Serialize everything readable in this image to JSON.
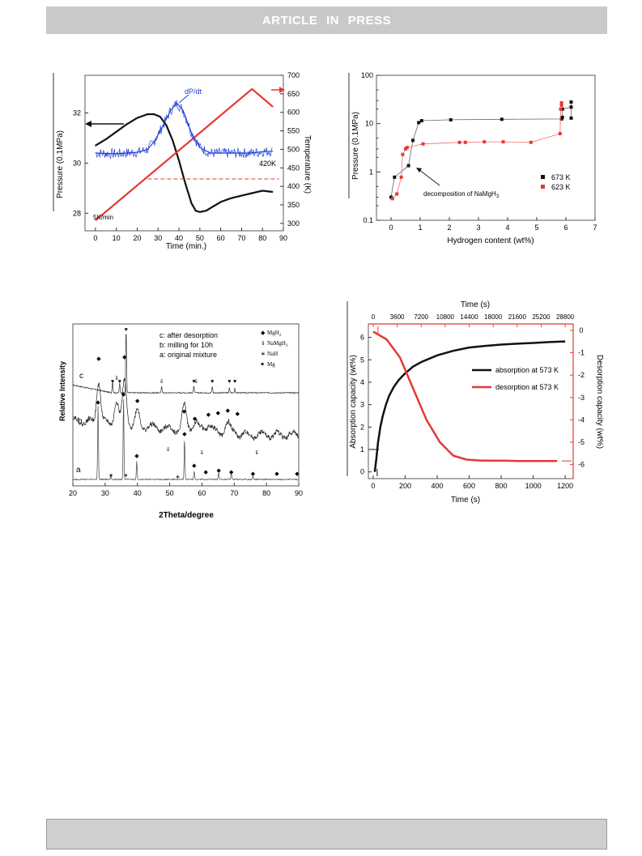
{
  "header": {
    "banner": "ARTICLE IN PRESS"
  },
  "charts": {
    "c1": {
      "ylabel_left": "Pressure (0.1MPa)",
      "ylabel_right": "Temperature (K)",
      "xlabel": "Time (min.)",
      "ann_dpdt": "dP/dt",
      "ann_420": "420K",
      "ann_rate": "5K/min"
    },
    "c2": {
      "ylabel": "Pressure (0.1MPa)",
      "xlabel": "Hydrogen content (wt%)",
      "ann": "decomposition of NaMgH",
      "ann_sub": "3",
      "legend": [
        "673 K",
        "623 K"
      ]
    },
    "c3": {
      "ylabel": "Relative Intensity",
      "xlabel": "2Theta/degree",
      "notes": [
        "c: after desorption",
        "b: milling for 10h",
        "a: original mixture"
      ],
      "legend": [
        "MgH",
        "NaMgH",
        "NaH",
        "Mg"
      ],
      "sub2": "2",
      "sub3": "3",
      "curve_labels": [
        "c",
        "b",
        "a"
      ]
    },
    "c4": {
      "xlabel_top": "Time (s)",
      "xlabel_bottom": "Time (s)",
      "ylabel_left": "Absorption capacity (wt%)",
      "ylabel_right": "Desorption capacity (wt%)",
      "legend": [
        "absorption at 573 K",
        "desorption at 573 K"
      ]
    }
  },
  "chart_data": [
    {
      "type": "line",
      "xlabel": "Time (min.)",
      "ylabel": "Pressure (0.1MPa)",
      "y2label": "Temperature (K)",
      "xlim": [
        -5,
        90
      ],
      "ylim": [
        27.3,
        33.5
      ],
      "y2lim": [
        280,
        700
      ],
      "xticks": [
        0,
        10,
        20,
        30,
        40,
        50,
        60,
        70,
        80,
        90
      ],
      "yticks": [
        28,
        30,
        32
      ],
      "y2ticks": [
        300,
        350,
        400,
        450,
        500,
        550,
        600,
        650,
        700
      ],
      "series": [
        {
          "axis": "left",
          "color": "#111111",
          "x": [
            0,
            5,
            10,
            15,
            20,
            25,
            28,
            31,
            34,
            37,
            40,
            43,
            46,
            48,
            50,
            53,
            56,
            60,
            65,
            70,
            75,
            80,
            85
          ],
          "y": [
            30.7,
            30.95,
            31.25,
            31.55,
            31.8,
            31.95,
            31.95,
            31.85,
            31.5,
            30.9,
            30.1,
            29.2,
            28.4,
            28.1,
            28.05,
            28.1,
            28.25,
            28.45,
            28.6,
            28.7,
            28.8,
            28.9,
            28.85
          ]
        },
        {
          "axis": "right",
          "color": "#e53935",
          "x": [
            0,
            75,
            85
          ],
          "y": [
            308,
            663,
            615
          ]
        },
        {
          "axis": "right",
          "color": "#e53935",
          "dashed": true,
          "x": [
            25,
            88
          ],
          "y": [
            420,
            420
          ]
        },
        {
          "axis": "right",
          "color": "#1f3fd8",
          "noisy": true,
          "x": [
            0,
            10,
            20,
            25,
            28,
            32,
            36,
            39,
            42,
            46,
            50,
            55,
            60,
            65,
            70,
            75,
            80,
            85
          ],
          "y": [
            490,
            488,
            492,
            500,
            520,
            560,
            605,
            625,
            605,
            545,
            505,
            490,
            490,
            490,
            490,
            490,
            494,
            495
          ]
        }
      ]
    },
    {
      "type": "scatter",
      "xlabel": "Hydrogen content (wt%)",
      "ylabel": "Pressure (0.1MPa)",
      "yscale": "log",
      "xlim": [
        -0.5,
        7
      ],
      "ylim": [
        0.1,
        100
      ],
      "xticks": [
        0,
        1,
        2,
        3,
        4,
        5,
        6,
        7
      ],
      "series": [
        {
          "name": "673 K",
          "color": "#111111",
          "x": [
            0.0,
            0.12,
            0.6,
            0.75,
            0.95,
            1.05,
            2.05,
            3.8,
            5.85,
            5.88,
            5.88,
            6.18,
            6.18,
            6.18
          ],
          "y": [
            0.3,
            0.78,
            1.35,
            4.5,
            10.5,
            11.5,
            12.0,
            12.3,
            12.5,
            13.5,
            20,
            22,
            28,
            13
          ]
        },
        {
          "name": "623 K",
          "color": "#e53935",
          "x": [
            0.05,
            0.2,
            0.35,
            0.4,
            0.5,
            0.55,
            1.1,
            2.35,
            2.55,
            3.2,
            3.85,
            4.8,
            5.8,
            5.82,
            5.85,
            5.85
          ],
          "y": [
            0.28,
            0.35,
            0.78,
            2.3,
            3.0,
            3.2,
            3.8,
            4.1,
            4.1,
            4.2,
            4.2,
            4.1,
            6.2,
            20,
            24,
            27
          ]
        }
      ]
    },
    {
      "type": "line",
      "xlabel": "2Theta/degree",
      "ylabel": "Relative Intensity",
      "xlim": [
        20,
        90
      ],
      "xticks": [
        20,
        30,
        40,
        50,
        60,
        70,
        80,
        90
      ],
      "series": [
        {
          "name": "c",
          "peaks": [
            32.3,
            34.5,
            36.5,
            47.5,
            57.5,
            63.2,
            68.5,
            70.2
          ]
        },
        {
          "name": "b",
          "peaks": [
            28.0,
            33.5,
            36.0,
            40.0,
            54.5,
            58.0,
            62.0,
            68.0
          ]
        },
        {
          "name": "a",
          "peaks": [
            27.8,
            31.8,
            35.7,
            39.8,
            54.6,
            57.6,
            65.2,
            69.1,
            75.8
          ]
        }
      ]
    },
    {
      "type": "line",
      "xlabel": "Time (s)",
      "ylabel": "Absorption capacity (wt%)",
      "y2label": "Desorption capacity (wt%)",
      "xlim": [
        -30,
        1250
      ],
      "ylim": [
        -0.3,
        6.6
      ],
      "xticks": [
        0,
        200,
        400,
        600,
        800,
        1000,
        1200
      ],
      "x2label": "Time (s)",
      "x2ticks": [
        0,
        3600,
        7200,
        10800,
        14400,
        18000,
        21600,
        25200,
        28800
      ],
      "y2ticks": [
        0,
        1,
        2,
        3,
        4,
        5,
        6
      ],
      "series": [
        {
          "name": "absorption at 573 K",
          "color": "#111111",
          "x": [
            10,
            20,
            30,
            45,
            60,
            80,
            100,
            130,
            160,
            200,
            250,
            300,
            400,
            500,
            600,
            700,
            800,
            900,
            1000,
            1100,
            1200
          ],
          "y": [
            0,
            0.6,
            1.3,
            2.0,
            2.5,
            3.0,
            3.4,
            3.8,
            4.1,
            4.4,
            4.7,
            4.9,
            5.2,
            5.4,
            5.55,
            5.62,
            5.68,
            5.72,
            5.75,
            5.79,
            5.82
          ]
        },
        {
          "name": "desorption at 573 K",
          "color": "#e53935",
          "axis": "top-right",
          "x": [
            0,
            2000,
            4000,
            6000,
            8000,
            10000,
            12000,
            14000,
            16000,
            18000,
            20000,
            22000,
            24000,
            26000,
            27600
          ],
          "y": [
            0.05,
            0.4,
            1.2,
            2.6,
            4.0,
            5.0,
            5.6,
            5.78,
            5.82,
            5.83,
            5.83,
            5.84,
            5.84,
            5.84,
            5.84
          ]
        }
      ]
    }
  ]
}
